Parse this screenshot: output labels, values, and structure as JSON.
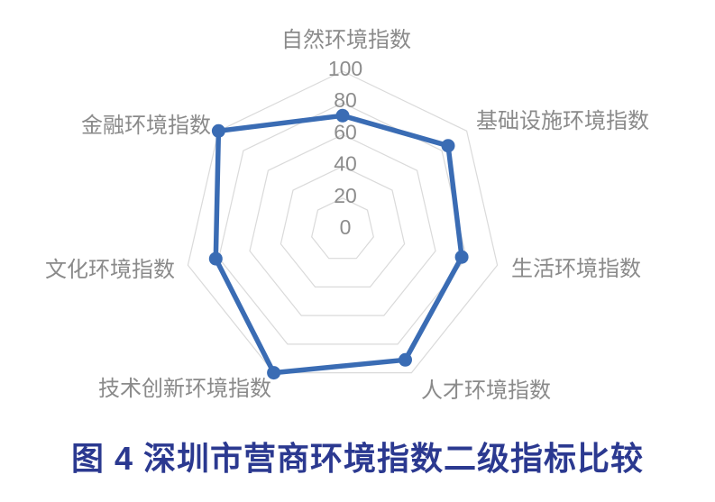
{
  "figure": {
    "caption": "图 4 深圳市营商环境指数二级指标比较"
  },
  "chart_data": {
    "type": "radar",
    "title": "图 4 深圳市营商环境指数二级指标比较",
    "categories": [
      "自然环境指数",
      "基础设施环境指数",
      "生活环境指数",
      "人才环境指数",
      "技术创新环境指数",
      "文化环境指数",
      "金融环境指数"
    ],
    "series": [
      {
        "name": "",
        "values": [
          72,
          85,
          77,
          91,
          100,
          82,
          100
        ]
      }
    ],
    "axis_ticks": [
      0,
      20,
      40,
      60,
      80,
      100
    ],
    "rlim": [
      0,
      100
    ],
    "grid": {
      "rings": "concentric-heptagons",
      "spokes": false
    },
    "legend_position": "none"
  },
  "colors": {
    "series_line": "#3A6CB4",
    "grid_line": "#DADADA",
    "tick_label": "#8C8C8C",
    "category_label": "#8A8A8A",
    "caption_text": "#2B3990",
    "background": "#FFFFFF"
  }
}
